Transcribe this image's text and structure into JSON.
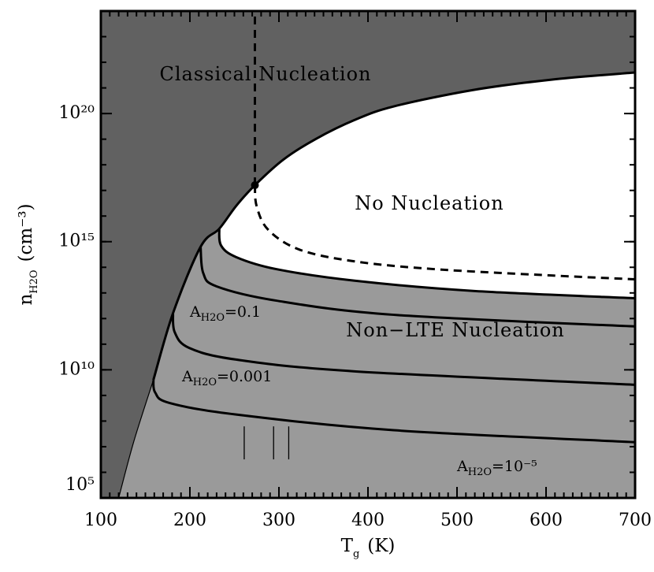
{
  "chart_data": {
    "type": "line",
    "x_label": {
      "symbol": "T",
      "subscript": "g",
      "unit": "(K)"
    },
    "y_label": {
      "symbol": "n",
      "subscript": "H2O",
      "unit": "(cm⁻³)"
    },
    "xlim": [
      100,
      700
    ],
    "xticks": [
      100,
      200,
      300,
      400,
      500,
      600,
      700
    ],
    "ylim": [
      100000.0,
      1e+24
    ],
    "yticks": [
      {
        "value": 100000.0,
        "label": "10⁵"
      },
      {
        "value": 10000000000.0,
        "label": "10¹⁰"
      },
      {
        "value": 1000000000000000.0,
        "label": "10¹⁵"
      },
      {
        "value": 1e+20,
        "label": "10²⁰"
      }
    ],
    "log_y": true,
    "minor_ticks": true,
    "regions": [
      {
        "label": "Classical Nucleation",
        "color": "#616161"
      },
      {
        "label": "No Nucleation",
        "color": "#ffffff"
      },
      {
        "label": "Non−LTE Nucleation",
        "color": "#9a9a9a"
      }
    ],
    "curves": [
      {
        "style": "thin",
        "x": [
          120,
          137,
          159
        ],
        "y": [
          100000.0,
          16000000.0,
          4000000000.0
        ]
      },
      {
        "style": "thick",
        "x": [
          159,
          181,
          212,
          233,
          252,
          273,
          305,
          341,
          385,
          429,
          518,
          606,
          700
        ],
        "y": [
          4000000000.0,
          1600000000000.0,
          630000000000000.0,
          3200000000000000.0,
          2.5e+16,
          1.6e+17,
          1.6e+18,
          1e+19,
          5.6e+19,
          1.9e+20,
          8.3e+20,
          2.1e+21,
          4e+21
        ]
      },
      {
        "style": "dashed",
        "x": [
          273,
          273
        ],
        "y": [
          1.6e+17,
          1e+24
        ]
      },
      {
        "style": "dashed",
        "x": [
          273,
          275,
          288,
          323,
          385,
          474,
          606,
          700
        ],
        "y": [
          1.6e+17,
          2.4e+16,
          2900000000000000.0,
          490000000000000.0,
          170000000000000.0,
          85000000000000.0,
          48000000000000.0,
          34000000000000.0
        ]
      },
      {
        "style": "thick",
        "x": [
          233,
          235,
          252,
          297,
          385,
          518,
          700
        ],
        "y": [
          3200000000000000.0,
          710000000000000.0,
          250000000000000.0,
          85000000000000.0,
          30000000000000.0,
          12000000000000.0,
          6200000000000.0
        ]
      },
      {
        "style": "thick",
        "x": [
          212,
          215,
          230,
          297,
          429,
          700
        ],
        "y": [
          630000000000000.0,
          59000000000000.0,
          18000000000000.0,
          5000000000000.0,
          1400000000000.0,
          490000000000.0
        ]
      },
      {
        "style": "thick",
        "x": [
          181,
          183,
          199,
          252,
          385,
          700
        ],
        "y": [
          1600000000000.0,
          290000000000.0,
          72000000000.0,
          25000000000.0,
          8700000000.0,
          2600000000.0
        ]
      },
      {
        "style": "thick",
        "x": [
          159,
          161,
          177,
          252,
          429,
          700
        ],
        "y": [
          4000000000.0,
          1300000000.0,
          510000000.0,
          180000000.0,
          44000000.0,
          15000000.0
        ]
      }
    ],
    "point": {
      "x": 273,
      "y": 1.6e+17
    },
    "reference_lines": [
      {
        "x": 261,
        "y": [
          3200000.0,
          62000000.0
        ]
      },
      {
        "x": 294,
        "y": [
          3200000.0,
          62000000.0
        ]
      },
      {
        "x": 311,
        "y": [
          3200000.0,
          62000000.0
        ]
      }
    ],
    "annotations": [
      {
        "symbol": "A",
        "subscript": "H2O",
        "text": "=0.1"
      },
      {
        "symbol": "A",
        "subscript": "H2O",
        "text": "=0.001"
      },
      {
        "symbol": "A",
        "subscript": "H2O",
        "text": "=10⁻⁵"
      }
    ]
  }
}
